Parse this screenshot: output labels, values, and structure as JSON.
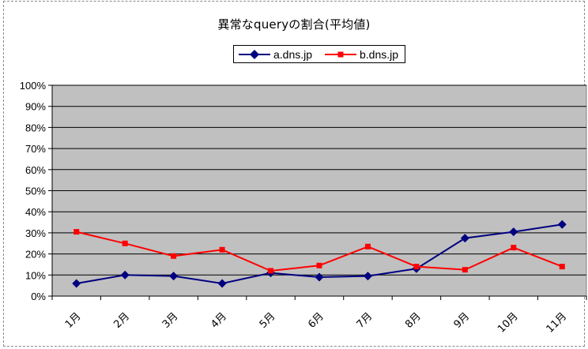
{
  "chart_data": {
    "type": "line",
    "title": "異常なqueryの割合(平均値)",
    "categories": [
      "1月",
      "2月",
      "3月",
      "4月",
      "5月",
      "6月",
      "7月",
      "8月",
      "9月",
      "10月",
      "11月"
    ],
    "series": [
      {
        "name": "a.dns.jp",
        "color": "#000080",
        "marker": "diamond",
        "values": [
          6,
          10,
          9.5,
          6,
          11,
          9,
          9.5,
          13,
          27.5,
          30.5,
          34
        ]
      },
      {
        "name": "b.dns.jp",
        "color": "#ff0000",
        "marker": "square",
        "values": [
          30.5,
          25,
          19,
          22,
          12,
          14.5,
          23.5,
          14,
          12.5,
          23,
          14
        ]
      }
    ],
    "yticks": [
      "0%",
      "10%",
      "20%",
      "30%",
      "40%",
      "50%",
      "60%",
      "70%",
      "80%",
      "90%",
      "100%"
    ],
    "ylim": [
      0,
      100
    ],
    "grid": true,
    "plot_background": "#c0c0c0",
    "legend_position": "top-center"
  }
}
